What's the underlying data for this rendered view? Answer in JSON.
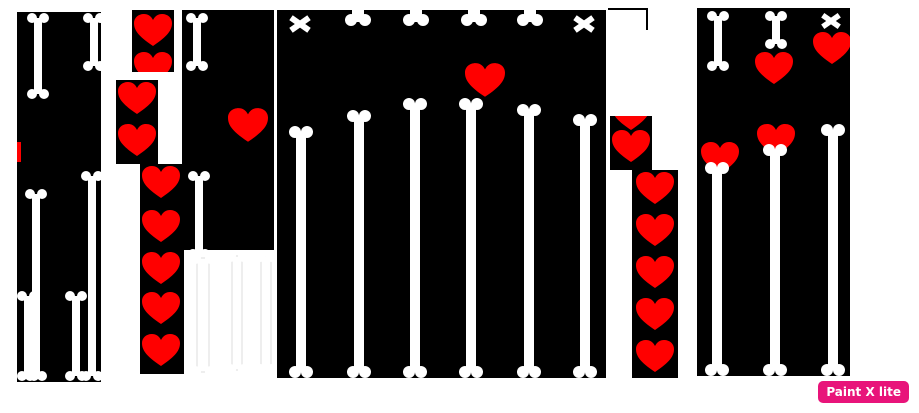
{
  "colors": {
    "background": "#ffffff",
    "panel": "#000000",
    "bone": "#ffffff",
    "heart": "#ff0000",
    "watermark_bg": "#e8147a",
    "watermark_text": "#ffffff"
  },
  "icons": {
    "bone": "bone-icon",
    "heart": "soul-heart-icon"
  },
  "watermark": {
    "label": "Paint X lite"
  }
}
